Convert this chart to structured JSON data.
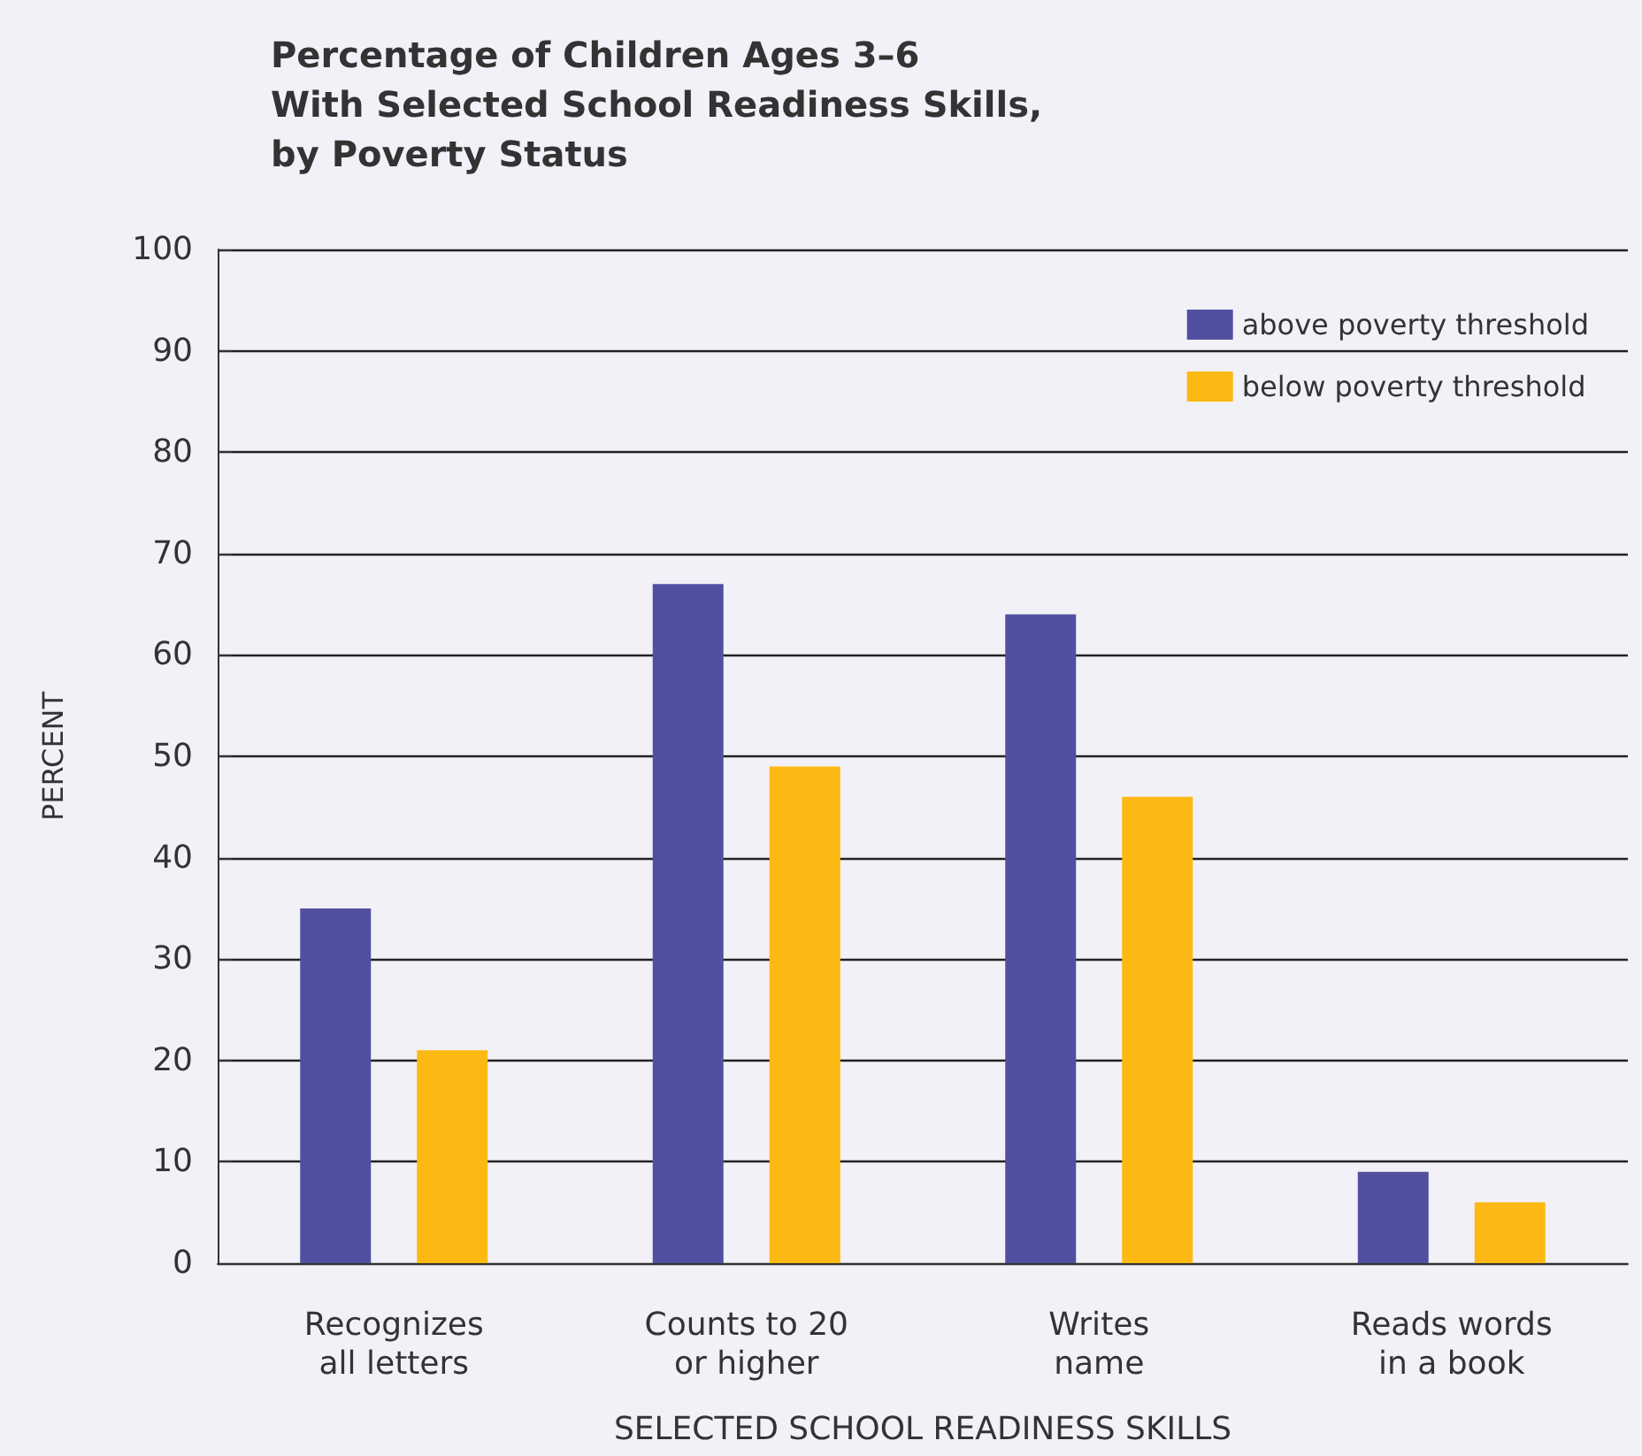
{
  "chart_data": {
    "type": "bar",
    "title": "Percentage of Children Ages 3–6\nWith Selected School Readiness Skills,\nby Poverty Status",
    "xlabel": "SELECTED SCHOOL READINESS SKILLS",
    "ylabel": "PERCENT",
    "categories": [
      "Recognizes\nall letters",
      "Counts to 20\nor higher",
      "Writes\nname",
      "Reads words\nin a book"
    ],
    "series": [
      {
        "name": "above poverty threshold",
        "color": "#5150a0",
        "values": [
          35,
          67,
          64,
          9
        ]
      },
      {
        "name": "below poverty threshold",
        "color": "#fdb913",
        "values": [
          21,
          49,
          46,
          6
        ]
      }
    ],
    "ylim": [
      0,
      100
    ],
    "yticks": [
      0,
      10,
      20,
      30,
      40,
      50,
      60,
      70,
      80,
      90,
      100
    ],
    "grid": "y",
    "legend": "top right"
  }
}
